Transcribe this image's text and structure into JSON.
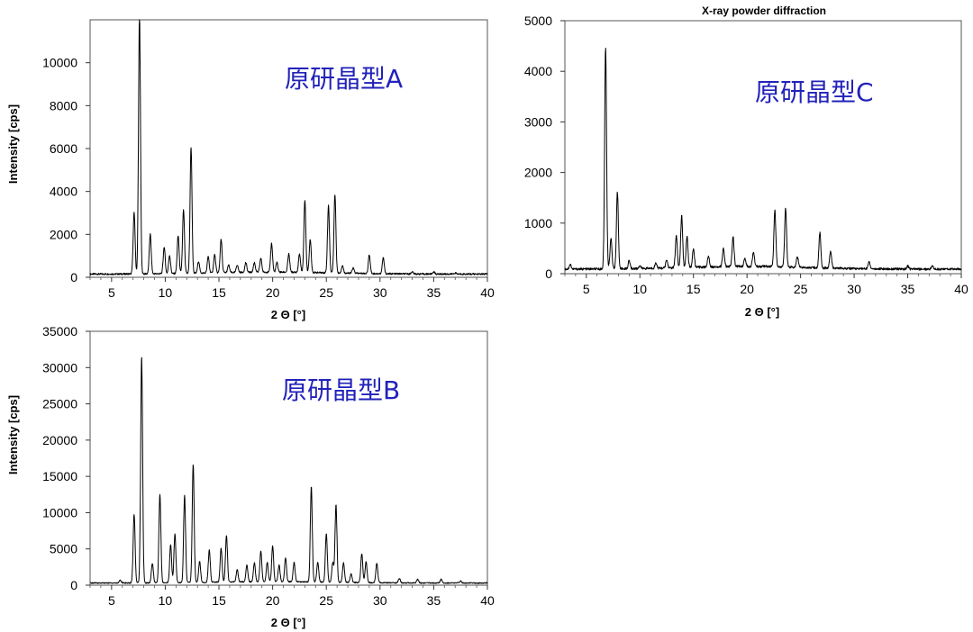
{
  "colors": {
    "annotation": "#2222bb",
    "line": "#000000"
  },
  "chart_data": [
    {
      "type": "line",
      "title": "",
      "annotation": "原研晶型A",
      "xlabel": "2 Θ  [°]",
      "ylabel": "Intensity [cps]",
      "xlim": [
        3,
        40
      ],
      "ylim": [
        0,
        12000
      ],
      "x_ticks": [
        5,
        10,
        15,
        20,
        25,
        30,
        35,
        40
      ],
      "y_ticks": [
        0,
        2000,
        4000,
        6000,
        8000,
        10000
      ],
      "grid": false,
      "baseline": 150,
      "peaks": [
        {
          "x": 7.1,
          "y": 3000
        },
        {
          "x": 7.6,
          "y": 12300
        },
        {
          "x": 8.6,
          "y": 2000
        },
        {
          "x": 9.9,
          "y": 1400
        },
        {
          "x": 10.4,
          "y": 1000
        },
        {
          "x": 11.2,
          "y": 1900
        },
        {
          "x": 11.7,
          "y": 3100
        },
        {
          "x": 12.4,
          "y": 6000
        },
        {
          "x": 13.1,
          "y": 700
        },
        {
          "x": 14.0,
          "y": 900
        },
        {
          "x": 14.6,
          "y": 1000
        },
        {
          "x": 15.2,
          "y": 1700
        },
        {
          "x": 15.9,
          "y": 500
        },
        {
          "x": 16.7,
          "y": 500
        },
        {
          "x": 17.5,
          "y": 600
        },
        {
          "x": 18.3,
          "y": 600
        },
        {
          "x": 18.9,
          "y": 800
        },
        {
          "x": 19.9,
          "y": 1500
        },
        {
          "x": 20.4,
          "y": 600
        },
        {
          "x": 21.5,
          "y": 1000
        },
        {
          "x": 22.5,
          "y": 1000
        },
        {
          "x": 23.0,
          "y": 3500
        },
        {
          "x": 23.5,
          "y": 1700
        },
        {
          "x": 25.2,
          "y": 3300
        },
        {
          "x": 25.8,
          "y": 3800
        },
        {
          "x": 26.5,
          "y": 500
        },
        {
          "x": 27.5,
          "y": 400
        },
        {
          "x": 29.0,
          "y": 1000
        },
        {
          "x": 30.3,
          "y": 900
        },
        {
          "x": 33.0,
          "y": 250
        },
        {
          "x": 35.0,
          "y": 250
        },
        {
          "x": 37.0,
          "y": 200
        }
      ]
    },
    {
      "type": "line",
      "title": "X-ray powder diffraction",
      "annotation": "原研晶型C",
      "xlabel": "2 Θ  [°]",
      "ylabel": "",
      "xlim": [
        3,
        40
      ],
      "ylim": [
        0,
        5000
      ],
      "x_ticks": [
        5,
        10,
        15,
        20,
        25,
        30,
        35,
        40
      ],
      "y_ticks": [
        0,
        1000,
        2000,
        3000,
        4000,
        5000
      ],
      "grid": false,
      "baseline": 90,
      "peaks": [
        {
          "x": 3.5,
          "y": 180
        },
        {
          "x": 6.8,
          "y": 4450
        },
        {
          "x": 7.3,
          "y": 700
        },
        {
          "x": 7.9,
          "y": 1600
        },
        {
          "x": 9.0,
          "y": 250
        },
        {
          "x": 10.0,
          "y": 150
        },
        {
          "x": 11.5,
          "y": 200
        },
        {
          "x": 12.5,
          "y": 250
        },
        {
          "x": 13.4,
          "y": 720
        },
        {
          "x": 13.9,
          "y": 1120
        },
        {
          "x": 14.4,
          "y": 700
        },
        {
          "x": 15.0,
          "y": 450
        },
        {
          "x": 16.4,
          "y": 300
        },
        {
          "x": 17.8,
          "y": 450
        },
        {
          "x": 18.7,
          "y": 680
        },
        {
          "x": 19.8,
          "y": 250
        },
        {
          "x": 20.6,
          "y": 380
        },
        {
          "x": 22.6,
          "y": 1200
        },
        {
          "x": 23.6,
          "y": 1260
        },
        {
          "x": 24.7,
          "y": 300
        },
        {
          "x": 26.8,
          "y": 780
        },
        {
          "x": 27.8,
          "y": 420
        },
        {
          "x": 31.4,
          "y": 230
        },
        {
          "x": 35.0,
          "y": 150
        },
        {
          "x": 37.3,
          "y": 150
        }
      ]
    },
    {
      "type": "line",
      "title": "",
      "annotation": "原研晶型B",
      "xlabel": "2 Θ  [°]",
      "ylabel": "Intensity [cps]",
      "xlim": [
        3,
        40
      ],
      "ylim": [
        0,
        35000
      ],
      "x_ticks": [
        5,
        10,
        15,
        20,
        25,
        30,
        35,
        40
      ],
      "y_ticks": [
        0,
        5000,
        10000,
        15000,
        20000,
        25000,
        30000,
        35000
      ],
      "grid": false,
      "baseline": 300,
      "peaks": [
        {
          "x": 5.8,
          "y": 700
        },
        {
          "x": 7.1,
          "y": 9800
        },
        {
          "x": 7.8,
          "y": 31500
        },
        {
          "x": 8.8,
          "y": 3000
        },
        {
          "x": 9.5,
          "y": 12500
        },
        {
          "x": 10.5,
          "y": 5500
        },
        {
          "x": 10.9,
          "y": 7000
        },
        {
          "x": 11.8,
          "y": 12300
        },
        {
          "x": 12.6,
          "y": 16500
        },
        {
          "x": 13.2,
          "y": 3200
        },
        {
          "x": 14.1,
          "y": 4800
        },
        {
          "x": 15.2,
          "y": 5000
        },
        {
          "x": 15.7,
          "y": 6800
        },
        {
          "x": 16.7,
          "y": 2000
        },
        {
          "x": 17.6,
          "y": 2600
        },
        {
          "x": 18.3,
          "y": 2900
        },
        {
          "x": 18.9,
          "y": 4500
        },
        {
          "x": 19.5,
          "y": 3000
        },
        {
          "x": 20.0,
          "y": 5200
        },
        {
          "x": 20.6,
          "y": 2600
        },
        {
          "x": 21.2,
          "y": 3600
        },
        {
          "x": 22.0,
          "y": 3000
        },
        {
          "x": 23.6,
          "y": 13500
        },
        {
          "x": 24.2,
          "y": 3000
        },
        {
          "x": 25.0,
          "y": 7000
        },
        {
          "x": 25.6,
          "y": 3000
        },
        {
          "x": 25.9,
          "y": 11000
        },
        {
          "x": 26.6,
          "y": 3000
        },
        {
          "x": 27.3,
          "y": 1500
        },
        {
          "x": 28.3,
          "y": 4300
        },
        {
          "x": 28.7,
          "y": 3200
        },
        {
          "x": 29.7,
          "y": 3000
        },
        {
          "x": 31.8,
          "y": 900
        },
        {
          "x": 33.5,
          "y": 800
        },
        {
          "x": 35.7,
          "y": 800
        },
        {
          "x": 37.5,
          "y": 600
        }
      ]
    }
  ]
}
